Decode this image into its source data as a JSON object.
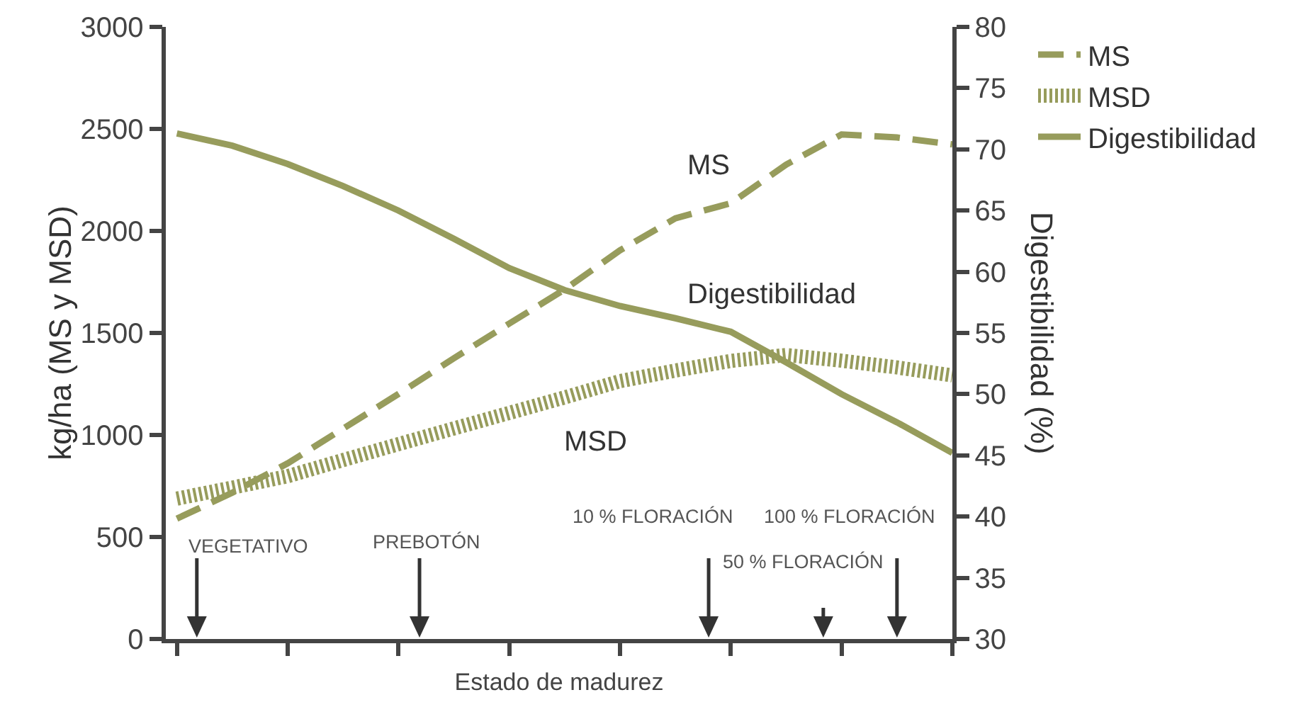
{
  "chart_data": {
    "type": "line",
    "xlabel": "Estado de madurez",
    "ylabel": "kg/ha (MS y MSD)",
    "y2label": "Digestibilidad (%)",
    "categories": [
      null,
      null,
      null,
      null,
      null,
      null,
      null,
      null,
      null,
      null,
      null,
      null,
      null,
      null,
      null
    ],
    "ylim": [
      0,
      3000
    ],
    "yticks": [
      0,
      500,
      1000,
      1500,
      2000,
      2500,
      3000
    ],
    "y2lim": [
      30,
      80
    ],
    "y2ticks": [
      30,
      35,
      40,
      45,
      50,
      55,
      60,
      65,
      70,
      75,
      80
    ],
    "grid": false,
    "legend": "right",
    "marker": "none",
    "series": [
      {
        "name": "MS",
        "color": "#979c5c",
        "line_style": "dashed",
        "values": [
          590,
          717,
          861,
          1031,
          1201,
          1376,
          1546,
          1713,
          1905,
          2062,
          2136,
          2325,
          2473,
          2458,
          2424
        ]
      },
      {
        "name": "MSD",
        "color": "#979c5c",
        "line_style": "dotted",
        "values": [
          688,
          742,
          798,
          877,
          955,
          1032,
          1108,
          1184,
          1264,
          1316,
          1363,
          1392,
          1364,
          1331,
          1292
        ]
      },
      {
        "name": "Digestibilidad",
        "color": "#979c5c",
        "line_style": "solid",
        "axis": "y2",
        "values": [
          71.3,
          70.3,
          68.8,
          67.0,
          65.0,
          62.7,
          60.3,
          58.5,
          57.2,
          56.2,
          55.1,
          52.6,
          50.0,
          47.7,
          45.2
        ]
      }
    ],
    "annotations": [
      "MS",
      "Digestibilidad",
      "MSD",
      "VEGETATIVO",
      "PREBOTÓN",
      "10 % FLORACIÓN",
      "50 % FLORACIÓN",
      "100 % FLORACIÓN"
    ]
  }
}
